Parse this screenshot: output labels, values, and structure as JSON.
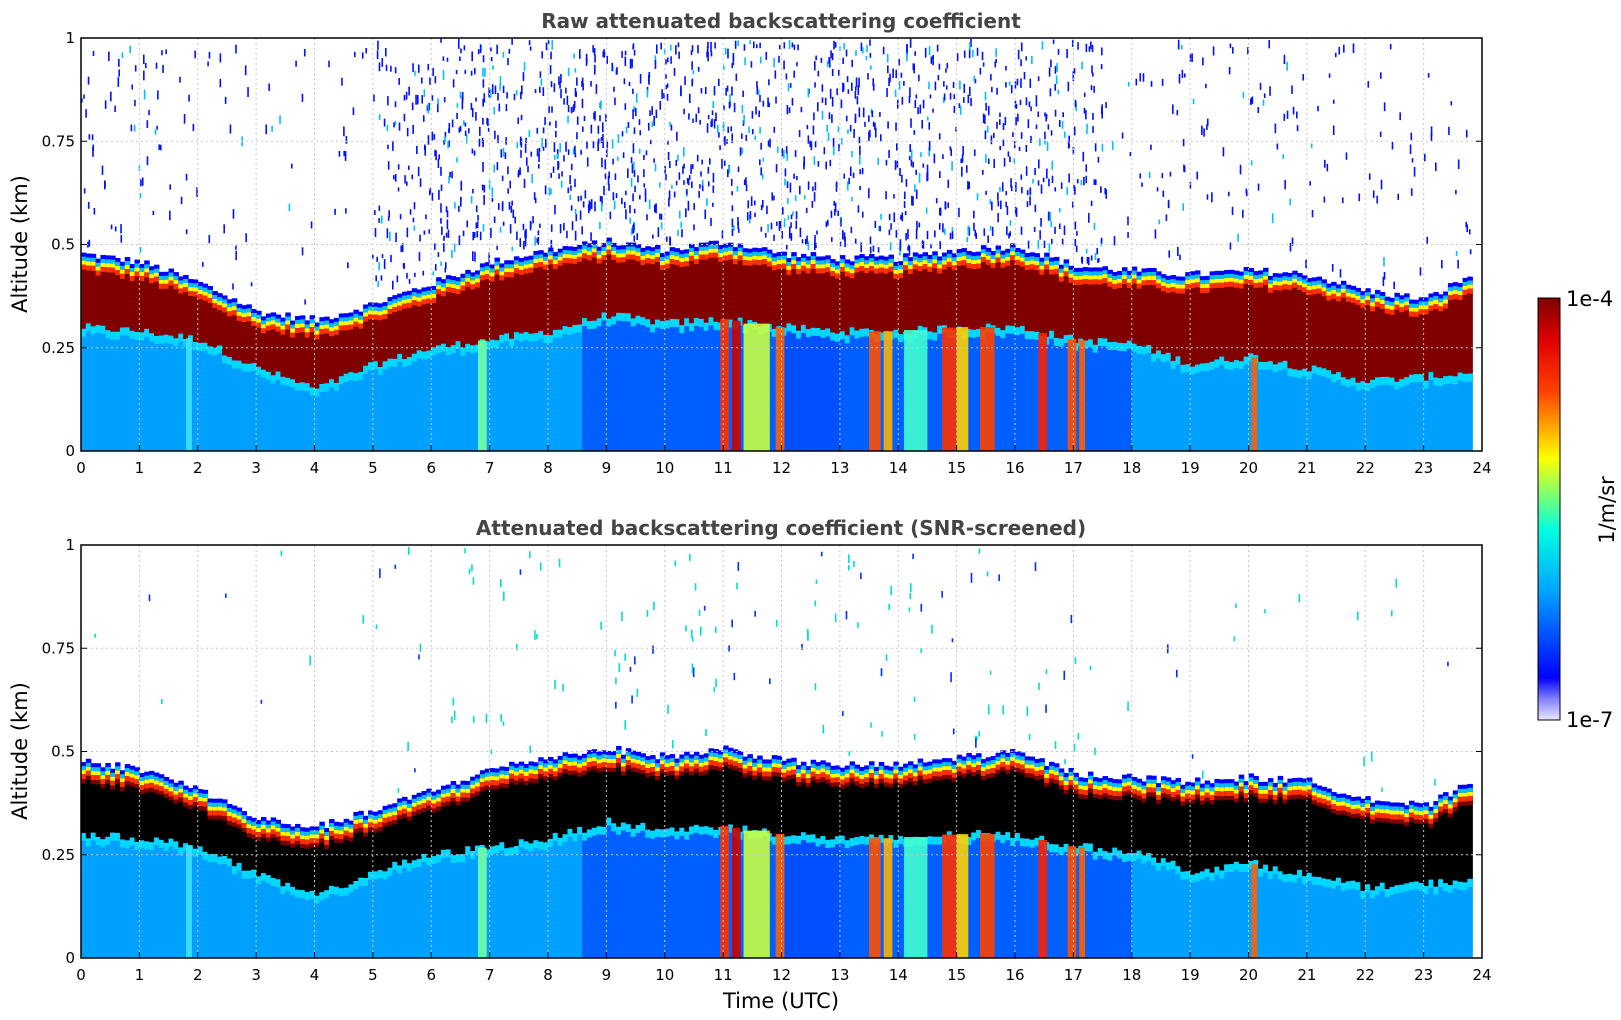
{
  "chart_data": [
    {
      "type": "heatmap",
      "title": "Raw attenuated backscattering coefficient",
      "xlabel": "",
      "ylabel": "Altitude (km)",
      "xlim": [
        0,
        24
      ],
      "ylim": [
        0,
        1
      ],
      "xticks": [
        "0",
        "1",
        "2",
        "3",
        "4",
        "5",
        "6",
        "7",
        "8",
        "9",
        "10",
        "11",
        "12",
        "13",
        "14",
        "15",
        "16",
        "17",
        "18",
        "19",
        "20",
        "21",
        "22",
        "23",
        "24"
      ],
      "yticks": [
        "0",
        "0.25",
        "0.5",
        "0.75",
        "1"
      ],
      "grid": true,
      "screened": false,
      "layer_top_km": [
        [
          0,
          0.47
        ],
        [
          1,
          0.45
        ],
        [
          2,
          0.4
        ],
        [
          3,
          0.33
        ],
        [
          4,
          0.31
        ],
        [
          5,
          0.35
        ],
        [
          6,
          0.4
        ],
        [
          7,
          0.45
        ],
        [
          8,
          0.48
        ],
        [
          9,
          0.5
        ],
        [
          10,
          0.48
        ],
        [
          11,
          0.5
        ],
        [
          12,
          0.47
        ],
        [
          13,
          0.46
        ],
        [
          14,
          0.46
        ],
        [
          15,
          0.48
        ],
        [
          16,
          0.49
        ],
        [
          17,
          0.44
        ],
        [
          18,
          0.43
        ],
        [
          19,
          0.42
        ],
        [
          20,
          0.43
        ],
        [
          21,
          0.42
        ],
        [
          22,
          0.38
        ],
        [
          23,
          0.36
        ],
        [
          23.8,
          0.42
        ]
      ],
      "layer_base_km": [
        [
          0,
          0.3
        ],
        [
          1,
          0.29
        ],
        [
          2,
          0.27
        ],
        [
          3,
          0.2
        ],
        [
          4,
          0.15
        ],
        [
          5,
          0.21
        ],
        [
          6,
          0.25
        ],
        [
          7,
          0.27
        ],
        [
          8,
          0.29
        ],
        [
          9,
          0.33
        ],
        [
          10,
          0.31
        ],
        [
          11,
          0.32
        ],
        [
          12,
          0.3
        ],
        [
          13,
          0.29
        ],
        [
          14,
          0.29
        ],
        [
          15,
          0.3
        ],
        [
          16,
          0.3
        ],
        [
          17,
          0.27
        ],
        [
          18,
          0.26
        ],
        [
          19,
          0.21
        ],
        [
          20,
          0.23
        ],
        [
          21,
          0.2
        ],
        [
          22,
          0.17
        ],
        [
          23,
          0.18
        ],
        [
          23.8,
          0.19
        ]
      ],
      "data_end_utc": 23.8
    },
    {
      "type": "heatmap",
      "title": "Attenuated backscattering coefficient (SNR-screened)",
      "xlabel": "Time (UTC)",
      "ylabel": "Altitude (km)",
      "xlim": [
        0,
        24
      ],
      "ylim": [
        0,
        1
      ],
      "xticks": [
        "0",
        "1",
        "2",
        "3",
        "4",
        "5",
        "6",
        "7",
        "8",
        "9",
        "10",
        "11",
        "12",
        "13",
        "14",
        "15",
        "16",
        "17",
        "18",
        "19",
        "20",
        "21",
        "22",
        "23",
        "24"
      ],
      "yticks": [
        "0",
        "0.25",
        "0.5",
        "0.75",
        "1"
      ],
      "grid": true,
      "screened": true,
      "data_end_utc": 23.8
    }
  ],
  "colorbar": {
    "label": "1/m/sr",
    "max_label": "1e-4",
    "min_label": "1e-7",
    "scale": "log",
    "range": [
      1e-07,
      0.0001
    ],
    "colormap": "jet",
    "colors": [
      "#e8e8ff",
      "#0000ff",
      "#00b4ff",
      "#00ffd0",
      "#ffff00",
      "#ff6000",
      "#ff0000",
      "#800000"
    ]
  }
}
